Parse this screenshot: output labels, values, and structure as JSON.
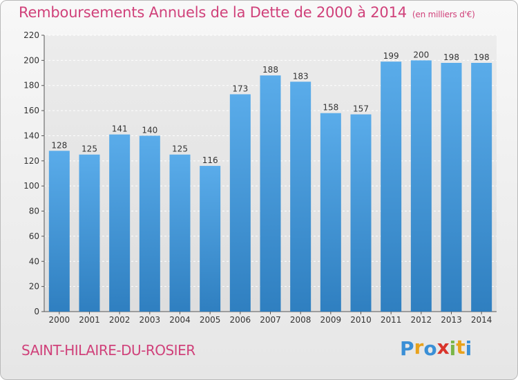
{
  "header": {
    "title": "Remboursements Annuels de la Dette de 2000 à 2014",
    "unit": "(en milliers d'€)"
  },
  "footer": {
    "place": "SAINT-HILAIRE-DU-ROSIER",
    "logo_letters": [
      "P",
      "r",
      "o",
      "x",
      "i",
      "t",
      "i"
    ],
    "logo_colors": [
      "#3a8fd6",
      "#e8a21c",
      "#3a8fd6",
      "#d9342b",
      "#7ab648",
      "#e8a21c",
      "#3a8fd6"
    ]
  },
  "colors": {
    "bar_top": "#5aacea",
    "bar_bottom": "#2f7fc0",
    "accent": "#d0417a"
  },
  "chart_data": {
    "type": "bar",
    "categories": [
      "2000",
      "2001",
      "2002",
      "2003",
      "2004",
      "2005",
      "2006",
      "2007",
      "2008",
      "2009",
      "2010",
      "2011",
      "2012",
      "2013",
      "2014"
    ],
    "values": [
      128,
      125,
      141,
      140,
      125,
      116,
      173,
      188,
      183,
      158,
      157,
      199,
      200,
      198,
      198
    ],
    "title": "Remboursements Annuels de la Dette de 2000 à 2014",
    "xlabel": "",
    "ylabel": "",
    "ylim": [
      0,
      220
    ],
    "yticks": [
      0,
      20,
      40,
      60,
      80,
      100,
      120,
      140,
      160,
      180,
      200,
      220
    ],
    "grid": true,
    "data_labels": true
  }
}
